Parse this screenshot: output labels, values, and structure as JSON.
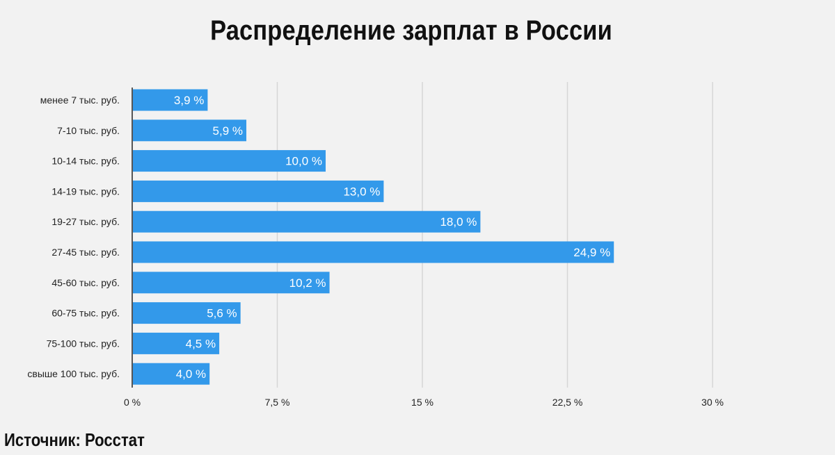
{
  "chart_data": {
    "type": "bar",
    "orientation": "horizontal",
    "title": "Распределение зарплат в России",
    "categories": [
      "менее 7 тыс. руб.",
      "7-10 тыс. руб.",
      "10-14 тыс. руб.",
      "14-19 тыс. руб.",
      "19-27 тыс. руб.",
      "27-45 тыс. руб.",
      "45-60 тыс. руб.",
      "60-75 тыс. руб.",
      "75-100 тыс. руб.",
      "свыше 100 тыс. руб."
    ],
    "values": [
      3.9,
      5.9,
      10.0,
      13.0,
      18.0,
      24.9,
      10.2,
      5.6,
      4.5,
      4.0
    ],
    "data_labels": [
      "3,9 %",
      "5,9 %",
      "10,0 %",
      "13,0 %",
      "18,0 %",
      "24,9 %",
      "10,2 %",
      "5,6 %",
      "4,5 %",
      "4,0 %"
    ],
    "ticks": [
      0,
      7.5,
      15,
      22.5,
      30
    ],
    "tick_labels": [
      "0 %",
      "7,5 %",
      "15 %",
      "22,5 %",
      "30 %"
    ],
    "xlim": [
      0,
      30
    ],
    "grid": true,
    "bar_color": "#3399ea",
    "grid_color": "#d6d6d6"
  },
  "source": "Источник: Росстат"
}
